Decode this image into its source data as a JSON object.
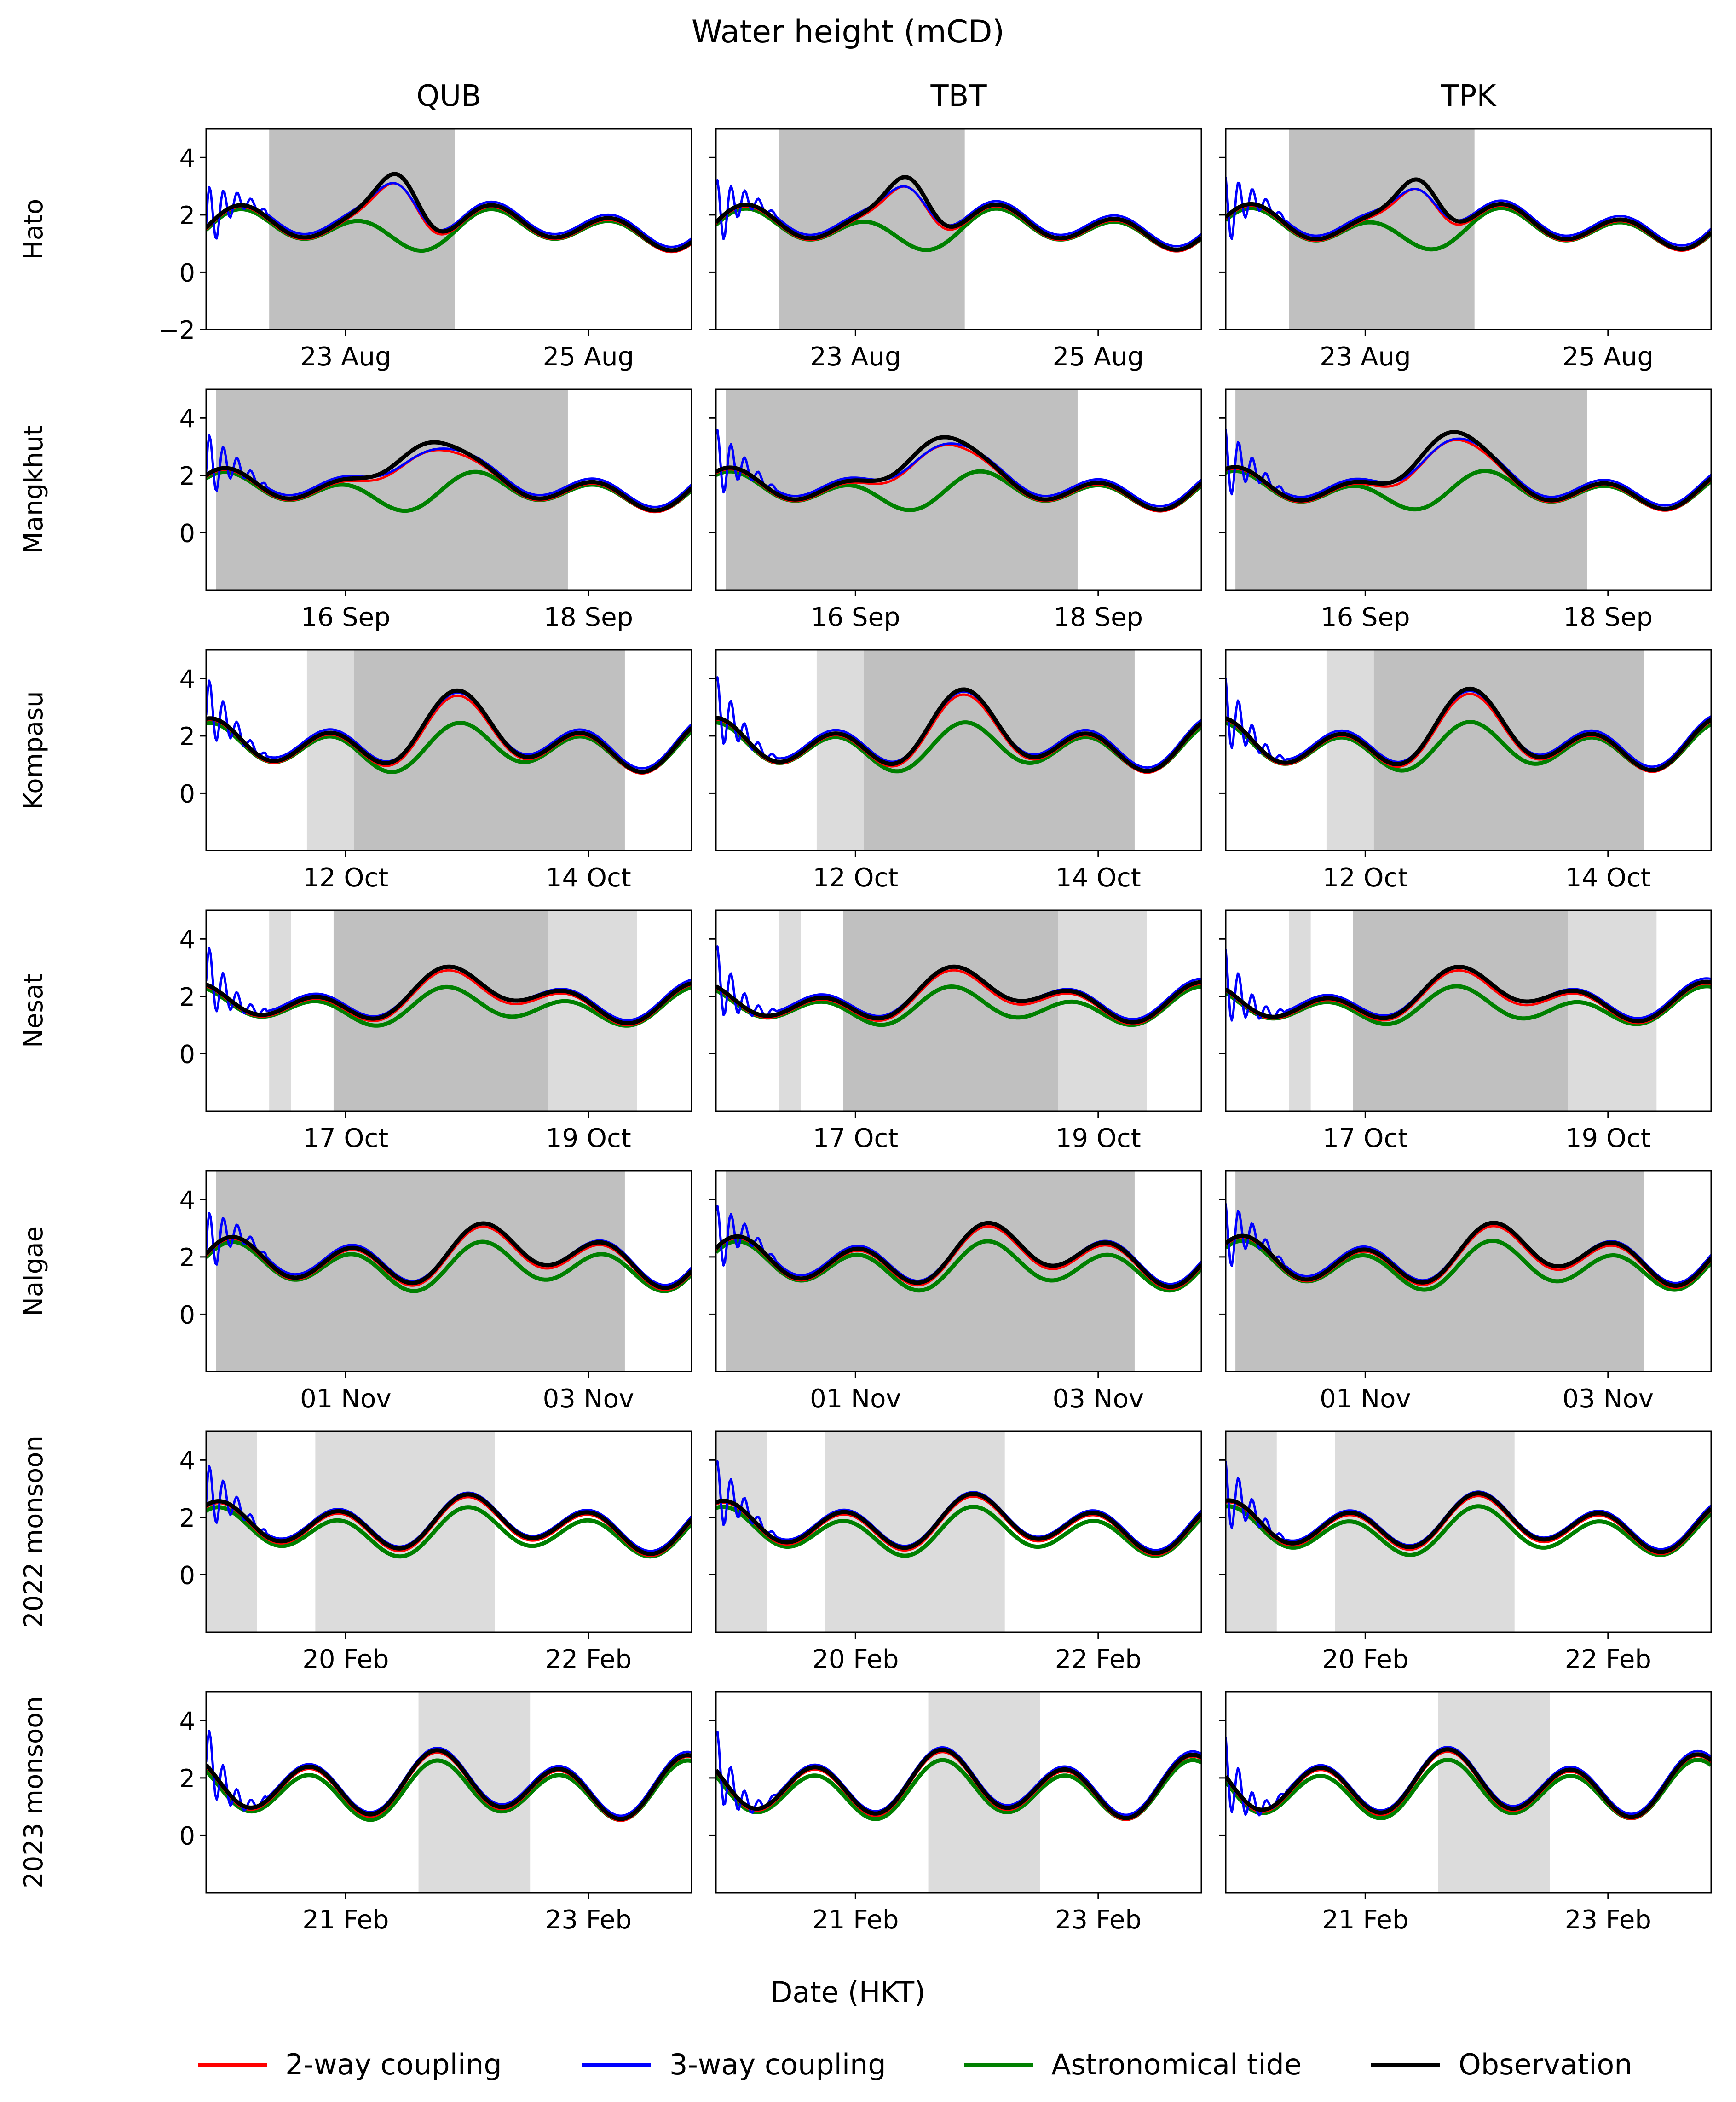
{
  "title": "Water height (mCD)",
  "xlabel": "Date (HKT)",
  "colors": {
    "two_way": "#ff0000",
    "three_way": "#0000ff",
    "astro": "#008000",
    "obs": "#000000",
    "shade_dark": "#c0c0c0",
    "shade_light": "#dcdcdc"
  },
  "legend": [
    {
      "key": "two_way",
      "label": "2-way coupling"
    },
    {
      "key": "three_way",
      "label": "3-way coupling"
    },
    {
      "key": "astro",
      "label": "Astronomical tide"
    },
    {
      "key": "obs",
      "label": "Observation"
    }
  ],
  "chart_data": {
    "type": "line",
    "columns": [
      "QUB",
      "TBT",
      "TPK"
    ],
    "ylim": [
      -2,
      5
    ],
    "yticks": [
      -2,
      0,
      2,
      4
    ],
    "rows": [
      {
        "name": "Hato",
        "xrange": [
          0,
          4
        ],
        "xticks": [
          {
            "x": 1.15,
            "label": "23 Aug"
          },
          {
            "x": 3.15,
            "label": "25 Aug"
          }
        ],
        "show_ymin_tick": true,
        "surge_peak": 2.3,
        "surge_center": 1.6,
        "surge_width": 0.25,
        "mean": 1.55,
        "amp": 0.55,
        "phase": 0.0,
        "shades": [
          [
            [
              0.52,
              2.05,
              "dark"
            ]
          ],
          [
            [
              0.52,
              2.05,
              "dark"
            ]
          ],
          [
            [
              0.52,
              2.05,
              "dark"
            ]
          ]
        ]
      },
      {
        "name": "Mangkhut",
        "xrange": [
          0,
          4
        ],
        "xticks": [
          {
            "x": 1.15,
            "label": "16 Sep"
          },
          {
            "x": 3.15,
            "label": "18 Sep"
          }
        ],
        "show_ymin_tick": false,
        "surge_peak": 2.1,
        "surge_center": 1.75,
        "surge_width": 0.35,
        "mean": 1.5,
        "amp": 0.5,
        "phase": 0.8,
        "shades": [
          [
            [
              0.08,
              2.98,
              "dark"
            ]
          ],
          [
            [
              0.08,
              2.98,
              "dark"
            ]
          ],
          [
            [
              0.08,
              2.98,
              "dark"
            ]
          ]
        ]
      },
      {
        "name": "Kompasu",
        "xrange": [
          0,
          4
        ],
        "xticks": [
          {
            "x": 1.15,
            "label": "12 Oct"
          },
          {
            "x": 3.15,
            "label": "14 Oct"
          }
        ],
        "show_ymin_tick": false,
        "surge_peak": 1.0,
        "surge_center": 2.0,
        "surge_width": 0.45,
        "mean": 1.65,
        "amp": 0.7,
        "phase": 1.5,
        "shades": [
          [
            [
              0.83,
              1.22,
              "light"
            ],
            [
              1.22,
              3.45,
              "dark"
            ]
          ],
          [
            [
              0.83,
              1.22,
              "light"
            ],
            [
              1.22,
              3.45,
              "dark"
            ]
          ],
          [
            [
              0.83,
              1.22,
              "light"
            ],
            [
              1.22,
              3.45,
              "dark"
            ]
          ]
        ]
      },
      {
        "name": "Nesat",
        "xrange": [
          0,
          4
        ],
        "xticks": [
          {
            "x": 1.15,
            "label": "17 Oct"
          },
          {
            "x": 3.15,
            "label": "19 Oct"
          }
        ],
        "show_ymin_tick": false,
        "surge_peak": 0.6,
        "surge_center": 2.2,
        "surge_width": 0.8,
        "mean": 1.7,
        "amp": 0.5,
        "phase": 2.2,
        "shades": [
          [
            [
              0.52,
              0.7,
              "light"
            ],
            [
              1.05,
              2.82,
              "dark"
            ],
            [
              2.82,
              3.55,
              "light"
            ]
          ],
          [
            [
              0.52,
              0.7,
              "light"
            ],
            [
              1.05,
              2.82,
              "dark"
            ],
            [
              2.82,
              3.55,
              "light"
            ]
          ],
          [
            [
              0.52,
              0.7,
              "light"
            ],
            [
              1.05,
              2.82,
              "dark"
            ],
            [
              2.82,
              3.55,
              "light"
            ]
          ]
        ]
      },
      {
        "name": "Nalgae",
        "xrange": [
          0,
          4
        ],
        "xticks": [
          {
            "x": 1.15,
            "label": "01 Nov"
          },
          {
            "x": 3.15,
            "label": "03 Nov"
          }
        ],
        "show_ymin_tick": false,
        "surge_peak": 0.5,
        "surge_center": 2.5,
        "surge_width": 1.0,
        "mean": 1.75,
        "amp": 0.7,
        "phase": 0.4,
        "shades": [
          [
            [
              0.08,
              3.45,
              "dark"
            ]
          ],
          [
            [
              0.08,
              3.45,
              "dark"
            ]
          ],
          [
            [
              0.08,
              3.45,
              "dark"
            ]
          ]
        ]
      },
      {
        "name": "2022 monsoon",
        "xrange": [
          0,
          4
        ],
        "xticks": [
          {
            "x": 1.15,
            "label": "20 Feb"
          },
          {
            "x": 3.15,
            "label": "22 Feb"
          }
        ],
        "show_ymin_tick": false,
        "surge_peak": 0.3,
        "surge_center": 2.0,
        "surge_width": 1.5,
        "mean": 1.55,
        "amp": 0.7,
        "phase": 1.1,
        "shades": [
          [
            [
              0.0,
              0.42,
              "light"
            ],
            [
              0.9,
              2.38,
              "light"
            ]
          ],
          [
            [
              0.0,
              0.42,
              "light"
            ],
            [
              0.9,
              2.38,
              "light"
            ]
          ],
          [
            [
              0.0,
              0.42,
              "light"
            ],
            [
              0.9,
              2.38,
              "light"
            ]
          ]
        ]
      },
      {
        "name": "2023 monsoon",
        "xrange": [
          0,
          4
        ],
        "xticks": [
          {
            "x": 1.15,
            "label": "21 Feb"
          },
          {
            "x": 3.15,
            "label": "23 Feb"
          }
        ],
        "show_ymin_tick": false,
        "surge_peak": 0.2,
        "surge_center": 1.5,
        "surge_width": 1.5,
        "mean": 1.6,
        "amp": 0.9,
        "phase": 2.6,
        "shades": [
          [
            [
              1.75,
              2.67,
              "light"
            ]
          ],
          [
            [
              1.75,
              2.67,
              "light"
            ]
          ],
          [
            [
              1.75,
              2.67,
              "light"
            ]
          ]
        ]
      }
    ]
  }
}
